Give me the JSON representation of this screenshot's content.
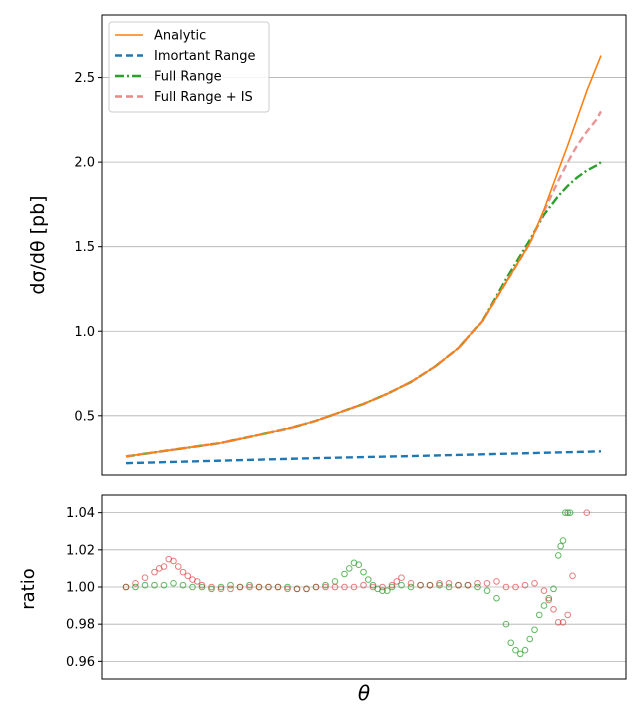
{
  "chart_data": [
    {
      "type": "line",
      "ylabel": "dσ/dθ [pb]",
      "xlabel": "",
      "ylim": [
        0.15,
        2.87
      ],
      "yticks": [
        0.5,
        1.0,
        1.5,
        2.0,
        2.5
      ],
      "ytick_labels": [
        "0.5",
        "1.0",
        "1.5",
        "2.0",
        "2.5"
      ],
      "grid": "horizontal",
      "legend_position": "upper-left",
      "x_ticks_shown": false,
      "series": [
        {
          "name": "Analytic",
          "color": "#ff7f0e",
          "style": "solid",
          "x": [
            0.0,
            0.05,
            0.1,
            0.15,
            0.2,
            0.25,
            0.3,
            0.35,
            0.4,
            0.45,
            0.5,
            0.55,
            0.6,
            0.65,
            0.7,
            0.75,
            0.8,
            0.85,
            0.88,
            0.91,
            0.93,
            0.95,
            0.97,
            0.99,
            1.0
          ],
          "values": [
            0.26,
            0.28,
            0.3,
            0.32,
            0.34,
            0.37,
            0.4,
            0.43,
            0.47,
            0.52,
            0.57,
            0.63,
            0.7,
            0.79,
            0.9,
            1.06,
            1.29,
            1.52,
            1.72,
            1.95,
            2.1,
            2.26,
            2.42,
            2.56,
            2.63
          ]
        },
        {
          "name": "Imortant Range",
          "color": "#1f77b4",
          "style": "dashed",
          "x": [
            0.0,
            0.2,
            0.4,
            0.6,
            0.8,
            1.0
          ],
          "values": [
            0.22,
            0.235,
            0.25,
            0.262,
            0.276,
            0.29
          ]
        },
        {
          "name": "Full Range",
          "color": "#2ca02c",
          "style": "dashdot",
          "x": [
            0.0,
            0.05,
            0.1,
            0.15,
            0.2,
            0.25,
            0.3,
            0.35,
            0.4,
            0.45,
            0.5,
            0.55,
            0.6,
            0.65,
            0.7,
            0.75,
            0.8,
            0.85,
            0.88,
            0.91,
            0.93,
            0.95,
            0.97,
            0.99,
            1.0
          ],
          "values": [
            0.26,
            0.28,
            0.3,
            0.32,
            0.34,
            0.37,
            0.4,
            0.43,
            0.47,
            0.52,
            0.57,
            0.63,
            0.7,
            0.79,
            0.9,
            1.06,
            1.31,
            1.54,
            1.69,
            1.8,
            1.86,
            1.91,
            1.95,
            1.98,
            2.0
          ]
        },
        {
          "name": "Full Range + IS",
          "color": "#e78a8a",
          "style": "dashed",
          "x": [
            0.0,
            0.05,
            0.1,
            0.15,
            0.2,
            0.25,
            0.3,
            0.35,
            0.4,
            0.45,
            0.5,
            0.55,
            0.6,
            0.65,
            0.7,
            0.75,
            0.8,
            0.85,
            0.88,
            0.91,
            0.93,
            0.95,
            0.97,
            0.99,
            1.0
          ],
          "values": [
            0.26,
            0.28,
            0.3,
            0.32,
            0.34,
            0.37,
            0.4,
            0.43,
            0.47,
            0.52,
            0.57,
            0.63,
            0.7,
            0.79,
            0.9,
            1.06,
            1.29,
            1.52,
            1.71,
            1.89,
            2.0,
            2.1,
            2.18,
            2.25,
            2.3
          ]
        }
      ]
    },
    {
      "type": "scatter",
      "xlabel": "θ",
      "ylabel": "ratio",
      "ylim": [
        0.9505,
        1.0495
      ],
      "yticks": [
        0.96,
        0.98,
        1.0,
        1.02,
        1.04
      ],
      "ytick_labels": [
        "0.96",
        "0.98",
        "1.00",
        "1.02",
        "1.04"
      ],
      "grid": "horizontal",
      "x_ticks_shown": false,
      "series": [
        {
          "color": "#2ca02c",
          "x": [
            0.0,
            0.02,
            0.04,
            0.06,
            0.08,
            0.1,
            0.12,
            0.14,
            0.16,
            0.18,
            0.2,
            0.22,
            0.24,
            0.26,
            0.28,
            0.3,
            0.32,
            0.34,
            0.36,
            0.38,
            0.4,
            0.42,
            0.44,
            0.46,
            0.47,
            0.48,
            0.49,
            0.5,
            0.51,
            0.52,
            0.53,
            0.54,
            0.55,
            0.56,
            0.58,
            0.6,
            0.62,
            0.64,
            0.66,
            0.68,
            0.7,
            0.72,
            0.74,
            0.76,
            0.78,
            0.8,
            0.81,
            0.82,
            0.83,
            0.84,
            0.85,
            0.86,
            0.87,
            0.88,
            0.89,
            0.9,
            0.91,
            0.915,
            0.92,
            0.925,
            0.93,
            0.935
          ],
          "values": [
            1.0,
            1.0,
            1.001,
            1.001,
            1.001,
            1.002,
            1.001,
            1.0,
            1.0,
            0.999,
            1.0,
            1.001,
            1.0,
            1.001,
            1.0,
            1.0,
            1.0,
            1.0,
            0.999,
            0.999,
            1.0,
            1.001,
            1.003,
            1.007,
            1.01,
            1.013,
            1.012,
            1.008,
            1.004,
            1.001,
            0.999,
            0.998,
            0.998,
            1.0,
            1.001,
            1.0,
            1.001,
            1.001,
            1.001,
            1.0,
            1.001,
            1.001,
            1.0,
            0.998,
            0.994,
            0.98,
            0.97,
            0.966,
            0.964,
            0.966,
            0.972,
            0.977,
            0.985,
            0.99,
            0.994,
            0.999,
            1.017,
            1.022,
            1.025,
            1.04,
            1.04,
            1.04
          ]
        },
        {
          "color": "#d62728",
          "x": [
            0.0,
            0.02,
            0.04,
            0.06,
            0.07,
            0.08,
            0.09,
            0.1,
            0.11,
            0.12,
            0.13,
            0.14,
            0.15,
            0.16,
            0.18,
            0.2,
            0.22,
            0.24,
            0.26,
            0.28,
            0.3,
            0.32,
            0.34,
            0.36,
            0.38,
            0.4,
            0.42,
            0.44,
            0.46,
            0.48,
            0.5,
            0.52,
            0.54,
            0.56,
            0.57,
            0.58,
            0.6,
            0.62,
            0.64,
            0.66,
            0.68,
            0.7,
            0.72,
            0.74,
            0.76,
            0.78,
            0.8,
            0.82,
            0.84,
            0.86,
            0.88,
            0.89,
            0.9,
            0.91,
            0.92,
            0.93,
            0.94,
            0.97
          ],
          "values": [
            1.0,
            1.002,
            1.005,
            1.008,
            1.01,
            1.011,
            1.015,
            1.014,
            1.011,
            1.008,
            1.006,
            1.004,
            1.003,
            1.001,
            1.0,
            0.999,
            0.999,
            1.0,
            1.0,
            1.0,
            1.0,
            1.0,
            0.999,
            0.999,
            0.999,
            1.0,
            1.0,
            1.0,
            1.0,
            1.0,
            1.001,
            1.0,
            1.0,
            1.001,
            1.003,
            1.005,
            1.002,
            1.001,
            1.001,
            1.002,
            1.002,
            1.001,
            1.001,
            1.002,
            1.002,
            1.003,
            1.0,
            1.0,
            1.001,
            1.002,
            0.998,
            0.993,
            0.988,
            0.981,
            0.981,
            0.985,
            1.006,
            1.04
          ]
        }
      ]
    }
  ]
}
